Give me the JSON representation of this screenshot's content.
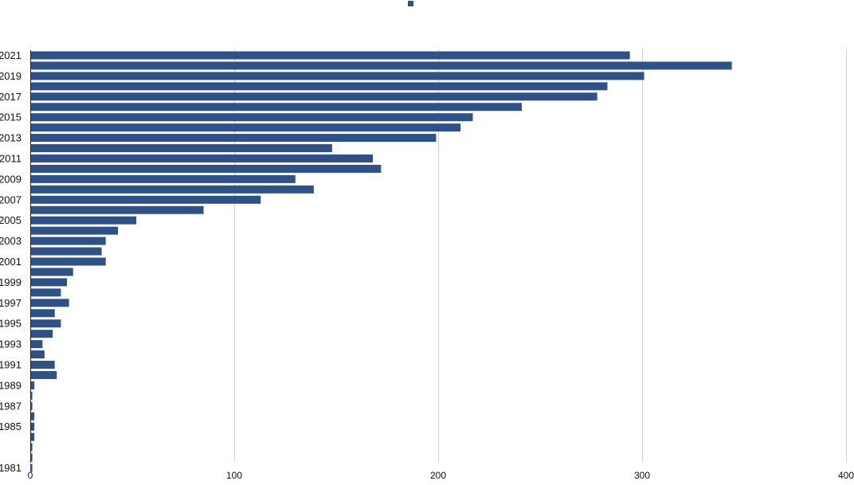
{
  "chart_data": {
    "type": "bar",
    "orientation": "horizontal",
    "title": "",
    "xlabel": "",
    "ylabel": "",
    "xlim": [
      0,
      400
    ],
    "x_ticks": [
      0,
      100,
      200,
      300,
      400
    ],
    "grid": "vertical",
    "legend": {
      "position": "top-center",
      "entries": [
        ""
      ]
    },
    "bar_color": "#2e5288",
    "categories": [
      "2021",
      "2020",
      "2019",
      "2018",
      "2017",
      "2016",
      "2015",
      "2014",
      "2013",
      "2012",
      "2011",
      "2010",
      "2009",
      "2008",
      "2007",
      "2006",
      "2005",
      "2004",
      "2003",
      "2002",
      "2001",
      "2000",
      "1999",
      "1998",
      "1997",
      "1996",
      "1995",
      "1994",
      "1993",
      "1992",
      "1991",
      "1990",
      "1989",
      "1988",
      "1987",
      "1986",
      "1985",
      "1984",
      "1983",
      "1982",
      "1981"
    ],
    "category_tick_labels": [
      "2021",
      "2019",
      "2017",
      "2015",
      "2013",
      "2011",
      "2009",
      "2007",
      "2005",
      "2003",
      "2001",
      "1999",
      "1997",
      "1995",
      "1993",
      "1991",
      "1989",
      "1987",
      "1985",
      "1981"
    ],
    "values": [
      294,
      344,
      301,
      283,
      278,
      241,
      217,
      211,
      199,
      148,
      168,
      172,
      130,
      139,
      113,
      85,
      52,
      43,
      37,
      35,
      37,
      21,
      18,
      15,
      19,
      12,
      15,
      11,
      6,
      7,
      12,
      13,
      2,
      1,
      1,
      2,
      2,
      2,
      1,
      1,
      1
    ]
  }
}
